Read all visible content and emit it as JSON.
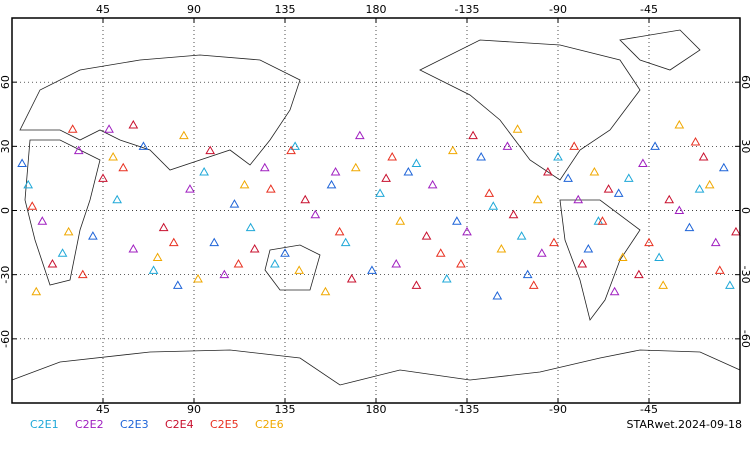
{
  "chart_data": {
    "type": "scatter",
    "xlim": [
      0,
      360
    ],
    "ylim": [
      -90,
      90
    ],
    "xticks": [
      45,
      90,
      135,
      180,
      {
        "value": 225,
        "label": "-135"
      },
      {
        "value": 270,
        "label": "-90"
      },
      {
        "value": 315,
        "label": "-45"
      }
    ],
    "yticks": [
      -60,
      -30,
      0,
      30,
      60
    ],
    "grid": true,
    "annotation": "STARwet.2024-09-18",
    "series": [
      {
        "name": "C2E1",
        "color": "#1fa8d8",
        "x": [
          8,
          25,
          52,
          70,
          95,
          118,
          140,
          165,
          182,
          200,
          215,
          238,
          252,
          270,
          290,
          305,
          320,
          340,
          355,
          130
        ],
        "values": [
          12,
          -20,
          5,
          -28,
          18,
          -8,
          30,
          -15,
          8,
          22,
          -32,
          2,
          -12,
          25,
          -5,
          15,
          -22,
          10,
          -35,
          -25
        ]
      },
      {
        "name": "C2E2",
        "color": "#a020c0",
        "x": [
          15,
          33,
          60,
          88,
          105,
          125,
          150,
          172,
          190,
          208,
          225,
          245,
          262,
          280,
          298,
          312,
          330,
          348,
          48,
          160
        ],
        "values": [
          -5,
          28,
          -18,
          10,
          -30,
          20,
          -2,
          35,
          -25,
          12,
          -10,
          30,
          -20,
          5,
          -38,
          22,
          0,
          -15,
          38,
          18
        ]
      },
      {
        "name": "C2E3",
        "color": "#1e64d8",
        "x": [
          5,
          40,
          65,
          82,
          110,
          135,
          158,
          178,
          196,
          220,
          232,
          255,
          275,
          285,
          300,
          318,
          335,
          352,
          100,
          240
        ],
        "values": [
          22,
          -12,
          30,
          -35,
          3,
          -20,
          12,
          -28,
          18,
          -5,
          25,
          -30,
          15,
          -18,
          8,
          30,
          -8,
          20,
          -15,
          -40
        ]
      },
      {
        "name": "C2E4",
        "color": "#c8102e",
        "x": [
          20,
          45,
          75,
          98,
          120,
          145,
          168,
          185,
          205,
          228,
          248,
          265,
          282,
          295,
          310,
          325,
          342,
          358,
          60,
          200
        ],
        "values": [
          -25,
          15,
          -8,
          28,
          -18,
          5,
          -32,
          15,
          -12,
          35,
          -2,
          18,
          -25,
          10,
          -30,
          5,
          25,
          -10,
          40,
          -35
        ]
      },
      {
        "name": "C2E5",
        "color": "#e83020",
        "x": [
          10,
          35,
          55,
          80,
          112,
          138,
          162,
          188,
          212,
          236,
          258,
          278,
          292,
          315,
          338,
          350,
          128,
          222,
          268,
          30
        ],
        "values": [
          2,
          -30,
          20,
          -15,
          -25,
          28,
          -10,
          25,
          -20,
          8,
          -35,
          30,
          -5,
          -15,
          32,
          -28,
          10,
          -25,
          -15,
          38
        ]
      },
      {
        "name": "C2E6",
        "color": "#f0a800",
        "x": [
          28,
          50,
          72,
          92,
          115,
          142,
          170,
          192,
          218,
          242,
          260,
          288,
          302,
          322,
          345,
          12,
          85,
          155,
          250,
          330
        ],
        "values": [
          -10,
          25,
          -22,
          -32,
          12,
          -28,
          20,
          -5,
          28,
          -18,
          5,
          18,
          -22,
          -35,
          12,
          -38,
          35,
          -38,
          38,
          40
        ]
      }
    ]
  }
}
